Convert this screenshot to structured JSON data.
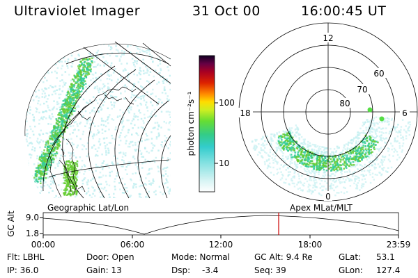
{
  "header": {
    "title": "Ultraviolet Imager",
    "date": "31 Oct 00",
    "time": "16:00:45 UT"
  },
  "colorbar": {
    "unit_label": "photon cm⁻²s⁻¹",
    "ticks": [
      "100",
      "10"
    ]
  },
  "polar_plot": {
    "mlt_labels": [
      "12",
      "18",
      "6",
      "0"
    ],
    "lat_labels": [
      "60",
      "70",
      "80"
    ]
  },
  "map_labels": {
    "left": "Geographic Lat/Lon",
    "right": "Apex MLat/MLT"
  },
  "timeline": {
    "axis_label": "GC Alt",
    "y_ticks": [
      "9.0",
      "1.8"
    ],
    "x_ticks": [
      "00:00",
      "06:00",
      "12:00",
      "18:00",
      "23:59"
    ],
    "current_time_marker": "16:00"
  },
  "info": {
    "flt_label": "Flt: LBHL",
    "ip_label": "IP: 36.0",
    "door_label": "Door: Open",
    "gain_label": "Gain: 13",
    "mode_label": "Mode: Normal",
    "dsp_label": "Dsp:",
    "dsp_value": "-3.4",
    "gcalt_label": "GC Alt: 9.4 Re",
    "seq_label": "Seq: 39",
    "glat_label": "GLat:",
    "glat_value": "53.1",
    "glon_label": "GLon:",
    "glon_value": "127.4"
  },
  "colors": {
    "marker": "#cc0000",
    "aurora_low": "#bfeef0",
    "aurora_mid": "#33cc99",
    "aurora_high": "#66cc33"
  }
}
